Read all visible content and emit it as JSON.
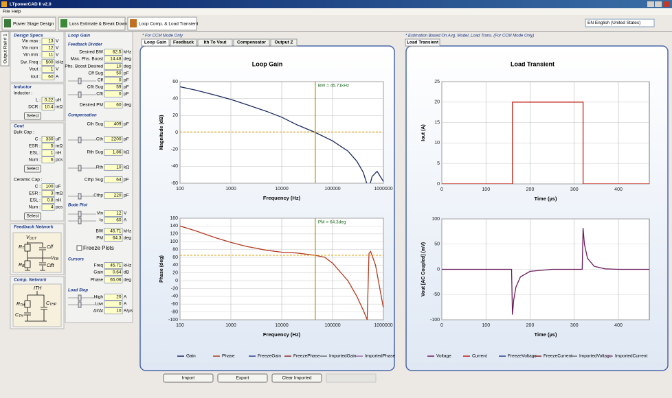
{
  "window": {
    "title": "LTpowerCAD II v2.0"
  },
  "menu": [
    "File",
    "Help"
  ],
  "toolbar_tabs": [
    "Power Stage Design",
    "Loss Estimate & Break Down",
    "Loop Comp. & Load Transient"
  ],
  "language": "EN English (United States)",
  "side_tab": "Output Rail # 1",
  "left_panel": [
    {
      "title": "Design Specs",
      "items": [
        {
          "label": "Vin max :",
          "value": 13,
          "unit": "V"
        },
        {
          "label": "Vin nom :",
          "value": 12,
          "unit": "V"
        },
        {
          "label": "Vin min :",
          "value": 11,
          "unit": "V"
        },
        {
          "label": "Sw. Freq :",
          "value": 500,
          "unit": "kHz"
        },
        {
          "label": "Vout :",
          "value": 1,
          "unit": "V"
        },
        {
          "label": "Iout :",
          "value": 60,
          "unit": "A"
        }
      ]
    },
    {
      "title": "Inductor",
      "items": [
        {
          "label": "Inductor :"
        },
        {
          "label": "L :",
          "value": 0.22,
          "unit": "uH"
        },
        {
          "label": "DCR :",
          "value": 10.4,
          "unit": "mΩ"
        },
        {
          "button": "Select"
        }
      ]
    },
    {
      "title": "Cout",
      "items": [
        {
          "label": "Bulk Cap :"
        },
        {
          "label": "C :",
          "value": 330,
          "unit": "uF"
        },
        {
          "label": "ESR :",
          "value": 5,
          "unit": "mΩ"
        },
        {
          "label": "ESL :",
          "value": 1,
          "unit": "nH"
        },
        {
          "label": "Num :",
          "value": 6,
          "unit": "pcs"
        },
        {
          "button": "Select"
        },
        {
          "label": "Ceramic Cap :"
        },
        {
          "label": "C :",
          "value": 100,
          "unit": "uF"
        },
        {
          "label": "ESR :",
          "value": 3,
          "unit": "mΩ"
        },
        {
          "label": "ESL :",
          "value": 0.8,
          "unit": "nH"
        },
        {
          "label": "Num :",
          "value": 4,
          "unit": "pcs"
        },
        {
          "button": "Select"
        }
      ]
    }
  ],
  "feedback_network": {
    "title": "Feedback Network",
    "labels": [
      {
        "text": "V",
        "sub": "OUT"
      },
      {
        "text": "R",
        "sub": "T"
      },
      {
        "text": "Cff"
      },
      {
        "text": "V",
        "sub": "FB"
      },
      {
        "text": "R",
        "sub": "B"
      },
      {
        "text": "Cflt"
      }
    ]
  },
  "comp_network": {
    "title": "Comp. Network",
    "labels": [
      {
        "text": "ITH"
      },
      {
        "text": "R",
        "sub": "TH"
      },
      {
        "text": "C",
        "sub": "TH"
      },
      {
        "text": "C",
        "sub": "THP"
      }
    ]
  },
  "loop_gain_panel": {
    "title": "Loop Gain",
    "sections": [
      {
        "title": "Feedback Divider",
        "items": [
          {
            "label": "Desired BW",
            "value": 62.5,
            "unit": "kHz"
          },
          {
            "label": "Max. Phs. Boost",
            "value": 14.48,
            "unit": "deg"
          },
          {
            "label": "Phs. Boost Desired",
            "value": 10,
            "unit": "deg"
          },
          {
            "label": "Cff Sug",
            "value": 50,
            "unit": "pF"
          },
          {
            "label": "Cff",
            "value": 0,
            "unit": "pF"
          },
          {
            "label": "Cflt Sug",
            "value": 59,
            "unit": "pF"
          },
          {
            "label": "Cflt",
            "value": 0,
            "unit": "pF"
          },
          {
            "label": "Desired PM",
            "value": 60,
            "unit": "deg"
          }
        ]
      },
      {
        "title": "Compensation",
        "items": [
          {
            "label": "Cth Sug",
            "value": 409,
            "unit": "pF"
          },
          {
            "label": "Cth",
            "value": 2200,
            "unit": "pF"
          },
          {
            "label": "Rth Sug",
            "value": 1.86,
            "unit": "kΩ"
          },
          {
            "label": "Rth",
            "value": 10,
            "unit": "kΩ"
          },
          {
            "label": "Cthp Sug",
            "value": 64,
            "unit": "pF"
          },
          {
            "label": "Cthp",
            "value": 220,
            "unit": "pF"
          }
        ]
      },
      {
        "title": "Bode Plot",
        "items": [
          {
            "label": "Vin",
            "value": 12,
            "unit": "V"
          },
          {
            "label": "Io",
            "value": 60,
            "unit": "A"
          },
          {
            "label": "BW",
            "value": 45.71,
            "unit": "kHz"
          },
          {
            "label": "PM",
            "value": 64.3,
            "unit": "deg"
          }
        ],
        "checkbox": "Freeze Plots"
      },
      {
        "title": "Cursors",
        "items": [
          {
            "label": "Freq",
            "value": 45.71,
            "unit": "kHz"
          },
          {
            "label": "Gain",
            "value": 0.64,
            "unit": "dB"
          },
          {
            "label": "Phase",
            "value": 65.06,
            "unit": "deg"
          }
        ]
      },
      {
        "title": "Load Step",
        "items": [
          {
            "label": "High",
            "value": 20,
            "unit": "A"
          },
          {
            "label": "Low",
            "value": 0,
            "unit": "A"
          },
          {
            "label": "ΔI/Δt",
            "value": 10,
            "unit": "A/µs"
          }
        ]
      }
    ]
  },
  "center": {
    "note": "* For CCM Mode Only",
    "tabs": [
      "Loop Gain",
      "Feedback",
      "Ith To Vout",
      "Compensator",
      "Output Z"
    ],
    "panel_title": "Loop Gain",
    "legend": [
      {
        "name": "Gain",
        "color": "#1c2a5c"
      },
      {
        "name": "Phase",
        "color": "#b03a20"
      },
      {
        "name": "FreezeGain",
        "color": "#2a3f8f"
      },
      {
        "name": "FreezePhase",
        "color": "#8a2a2a"
      },
      {
        "name": "ImportedGain",
        "color": "#707070"
      },
      {
        "name": "ImportedPhase",
        "color": "#a070a0"
      }
    ]
  },
  "right": {
    "note": "* Estimation Based On Avg. Model, Load Trans. (For CCM Mode Only)",
    "tabs": [
      "Load Transient"
    ],
    "panel_title": "Load Transient",
    "legend": [
      {
        "name": "Voltage",
        "color": "#6a1a5a"
      },
      {
        "name": "Current",
        "color": "#c02010"
      },
      {
        "name": "FreezeVoltage",
        "color": "#2a3f8f"
      },
      {
        "name": "FreezeCurrent",
        "color": "#8a2a2a"
      },
      {
        "name": "ImportedVoltage",
        "color": "#707070"
      },
      {
        "name": "ImportedCurrent",
        "color": "#a070a0"
      }
    ]
  },
  "buttons": [
    "Import",
    "Export",
    "Clear Imported"
  ],
  "chart_data": [
    {
      "type": "line",
      "ylabel": "Magnitude (dB)",
      "xlabel": "Frequency (Hz)",
      "xscale": "log",
      "xlim": [
        100,
        1000000
      ],
      "xticks": [
        100,
        1000,
        10000,
        100000,
        1000000
      ],
      "ylim": [
        -60,
        60
      ],
      "yticks": [
        60,
        40,
        20,
        0,
        -20,
        -40,
        -60
      ],
      "grid": true,
      "annotation": "BW = 45.71kHz",
      "color": "#1c2a5c",
      "x": [
        100,
        200,
        500,
        1000,
        2000,
        5000,
        10000,
        20000,
        45710,
        100000,
        200000,
        300000,
        400000,
        470000,
        520000,
        600000,
        750000,
        1000000
      ],
      "values": [
        54,
        50,
        44,
        39,
        33,
        25,
        18,
        9,
        0,
        -10,
        -22,
        -34,
        -47,
        -60,
        -66,
        -52,
        -46,
        -58
      ]
    },
    {
      "type": "line",
      "ylabel": "Phase (deg)",
      "xlabel": "Frequency (Hz)",
      "xscale": "log",
      "xlim": [
        100,
        1000000
      ],
      "xticks": [
        100,
        1000,
        10000,
        100000,
        1000000
      ],
      "ylim": [
        -100,
        160
      ],
      "yticks": [
        160,
        140,
        120,
        100,
        80,
        60,
        40,
        20,
        0,
        -20,
        -40,
        -60,
        -80,
        -100
      ],
      "grid": true,
      "annotation": "PM = 64.3deg",
      "color": "#b03a20",
      "x": [
        100,
        200,
        500,
        1000,
        2000,
        5000,
        10000,
        20000,
        45710,
        70000,
        100000,
        200000,
        300000,
        400000,
        480000,
        520000,
        560000,
        700000,
        1000000
      ],
      "values": [
        140,
        128,
        110,
        98,
        88,
        78,
        73,
        71,
        65,
        60,
        45,
        0,
        -40,
        -75,
        -100,
        70,
        75,
        40,
        -70
      ]
    },
    {
      "type": "line",
      "ylabel": "Iout (A)",
      "xlabel": "Time (µs)",
      "xlim": [
        0,
        470
      ],
      "xticks": [
        0,
        100,
        200,
        300,
        400
      ],
      "ylim": [
        0,
        25
      ],
      "yticks": [
        25,
        20,
        15,
        10,
        5,
        0
      ],
      "grid": true,
      "color": "#c02010",
      "x": [
        0,
        160,
        160,
        320,
        320,
        470
      ],
      "values": [
        0,
        0,
        20,
        20,
        0,
        0
      ]
    },
    {
      "type": "line",
      "ylabel": "Vout [AC Coupled] (mV)",
      "xlabel": "Time (µs)",
      "xlim": [
        0,
        470
      ],
      "xticks": [
        0,
        100,
        200,
        300,
        400
      ],
      "ylim": [
        -100,
        100
      ],
      "yticks": [
        100,
        50,
        0,
        -50,
        -100
      ],
      "grid": true,
      "color": "#6a1a5a",
      "x": [
        0,
        158,
        160,
        163,
        168,
        178,
        200,
        250,
        318,
        320,
        323,
        330,
        345,
        370,
        400,
        470
      ],
      "values": [
        0,
        0,
        -90,
        -60,
        -35,
        -15,
        -4,
        0,
        0,
        82,
        50,
        22,
        6,
        1,
        0,
        0
      ]
    }
  ]
}
